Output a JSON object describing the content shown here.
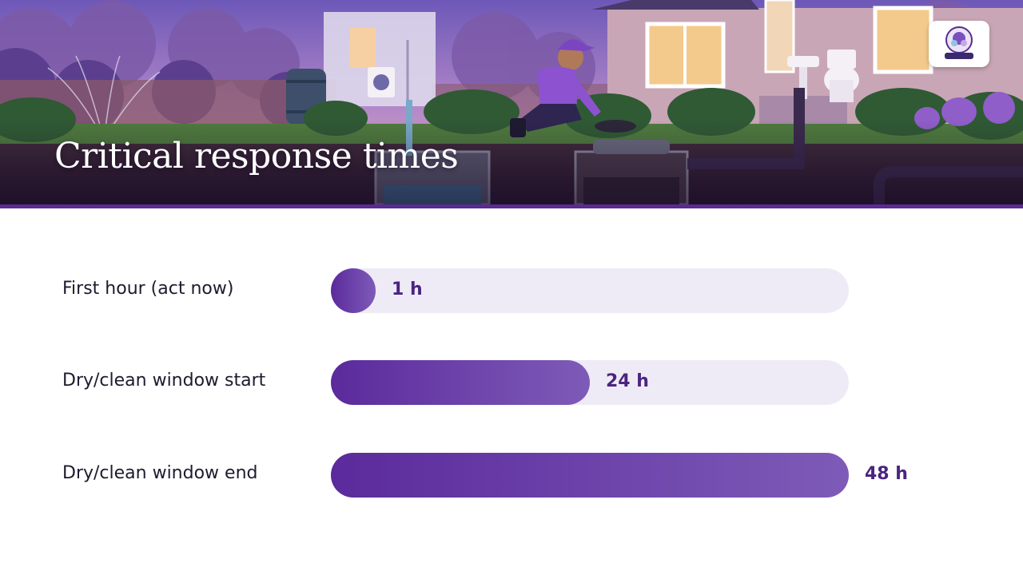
{
  "slide": {
    "title": "Critical response times"
  },
  "colors": {
    "accent": "#5b2a93",
    "bar_start": "#5b2a9c",
    "bar_end": "#7e5bb8",
    "track": "#efebf6",
    "value_text": "#4a2580"
  },
  "chart_data": {
    "type": "bar",
    "orientation": "horizontal",
    "categories": [
      "First hour (act now)",
      "Dry/clean window start",
      "Dry/clean window end"
    ],
    "values": [
      1,
      24,
      48
    ],
    "value_labels": [
      "1 h",
      "24 h",
      "48 h"
    ],
    "xlim": [
      0,
      48
    ],
    "grid": false,
    "legend": "none"
  }
}
